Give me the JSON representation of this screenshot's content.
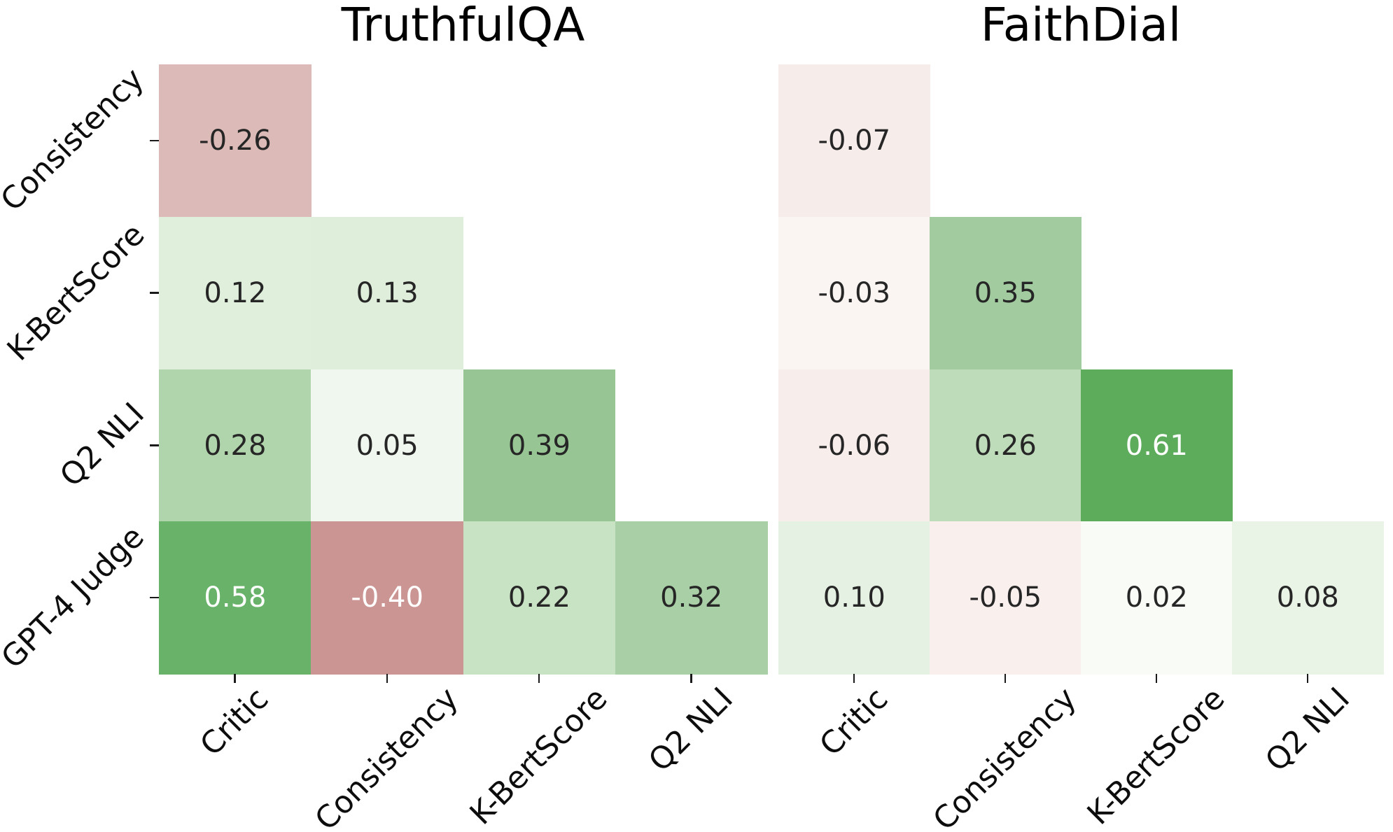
{
  "figure": {
    "background": "#ffffff"
  },
  "style": {
    "annotation_color_dark": "#262626",
    "annotation_color_light": "#ffffff",
    "axis_text_color": "#0d0d0d",
    "tick_color": "#1a1a1a",
    "light_text_threshold": 0.4,
    "palette": {
      "strong_negative": "#cb9593",
      "zero": "#fbfbf9",
      "strong_positive": "#5cac5c",
      "description": "red-white-green diverging colormap"
    }
  },
  "chart_data": [
    {
      "type": "heatmap",
      "title": "TruthfulQA",
      "shape": "lower-triangle",
      "legend": "none",
      "grid": false,
      "y_labels": [
        "Consistency",
        "K-BertScore",
        "Q2 NLI",
        "GPT-4 Judge"
      ],
      "x_labels": [
        "Critic",
        "Consistency",
        "K-BertScore",
        "Q2 NLI"
      ],
      "cells": [
        [
          {
            "value": -0.26,
            "color": "#dcbab7"
          }
        ],
        [
          {
            "value": 0.12,
            "color": "#e0efdc"
          },
          {
            "value": 0.13,
            "color": "#dfeedb"
          }
        ],
        [
          {
            "value": 0.28,
            "color": "#b0d5ac"
          },
          {
            "value": 0.05,
            "color": "#f0f7ee"
          },
          {
            "value": 0.39,
            "color": "#97c593"
          }
        ],
        [
          {
            "value": 0.58,
            "color": "#68b269"
          },
          {
            "value": -0.4,
            "color": "#cb9593"
          },
          {
            "value": 0.22,
            "color": "#c8e2c4"
          },
          {
            "value": 0.32,
            "color": "#a8cfa5"
          }
        ]
      ]
    },
    {
      "type": "heatmap",
      "title": "FaithDial",
      "shape": "lower-triangle",
      "legend": "none",
      "grid": false,
      "y_labels": [
        "Consistency",
        "K-BertScore",
        "Q2 NLI",
        "GPT-4 Judge"
      ],
      "x_labels": [
        "Critic",
        "Consistency",
        "K-BertScore",
        "Q2 NLI"
      ],
      "cells": [
        [
          {
            "value": -0.07,
            "color": "#f6ecea"
          }
        ],
        [
          {
            "value": -0.03,
            "color": "#faf5f2"
          },
          {
            "value": 0.35,
            "color": "#a2cc9f"
          }
        ],
        [
          {
            "value": -0.06,
            "color": "#f7eeec"
          },
          {
            "value": 0.26,
            "color": "#bedbba"
          },
          {
            "value": 0.61,
            "color": "#5cac5c"
          }
        ],
        [
          {
            "value": 0.1,
            "color": "#e5f1e2"
          },
          {
            "value": -0.05,
            "color": "#f9f0ee"
          },
          {
            "value": 0.02,
            "color": "#f8fbf6"
          },
          {
            "value": 0.08,
            "color": "#e9f3e6"
          }
        ]
      ]
    }
  ]
}
